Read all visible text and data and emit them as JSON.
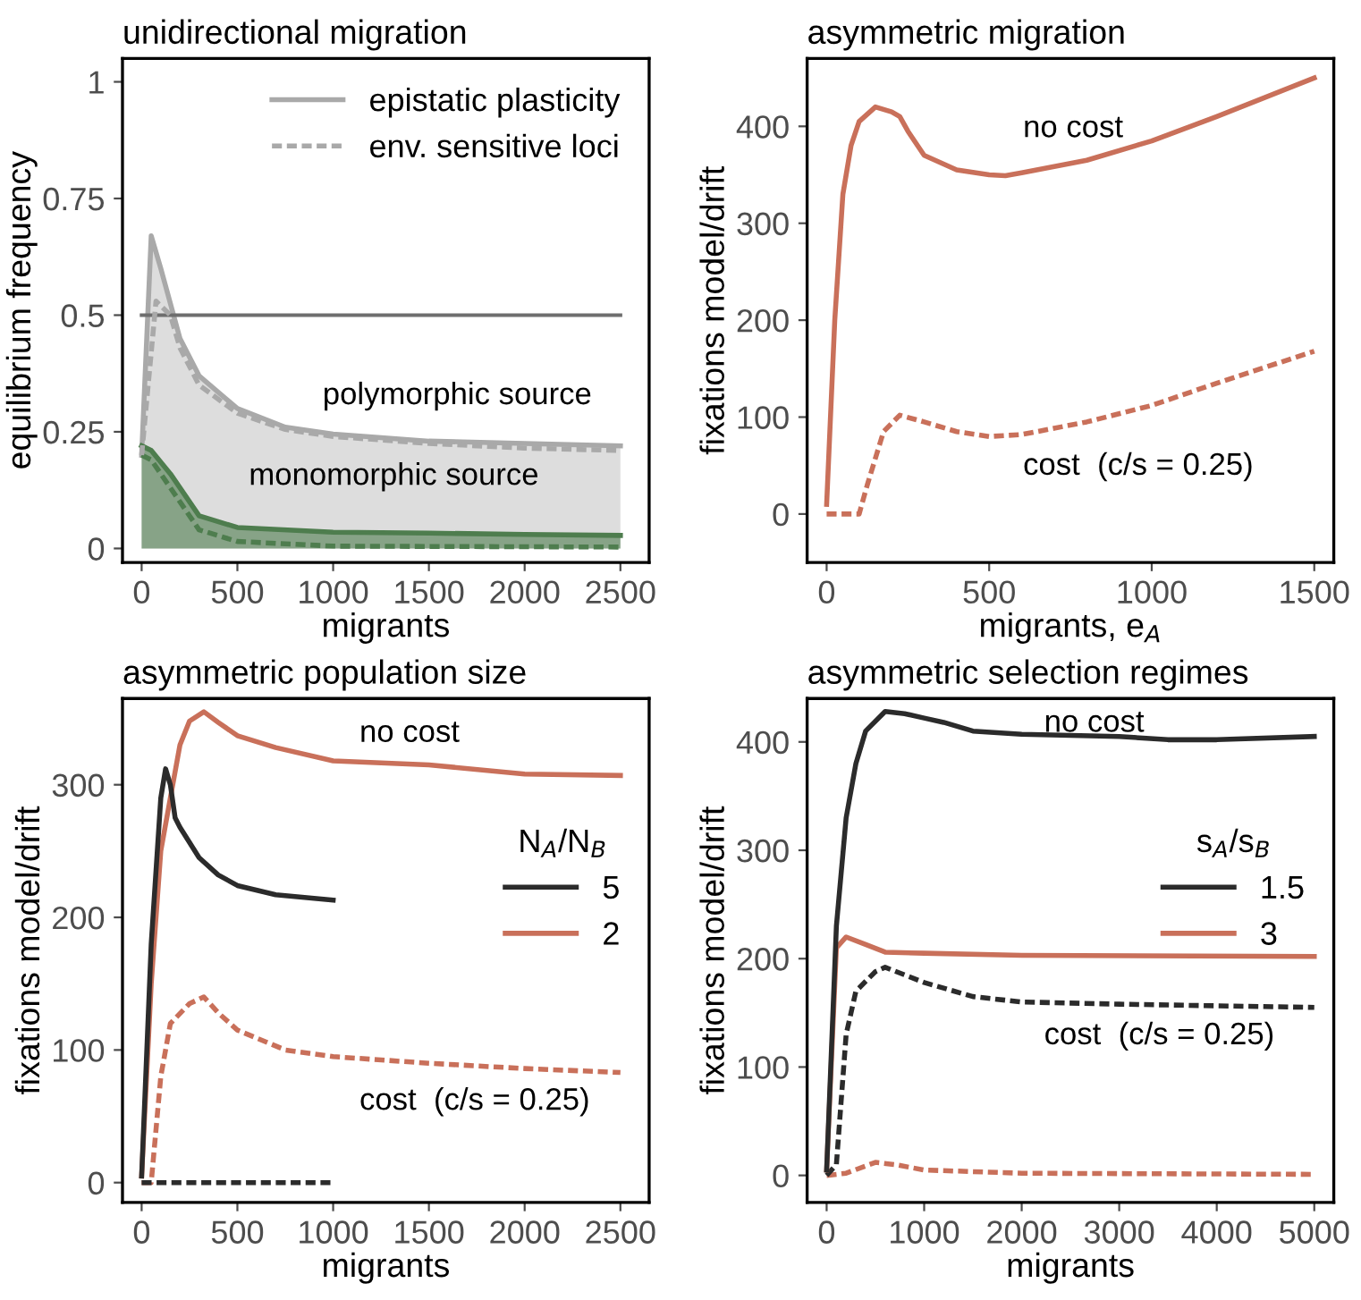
{
  "chart_data": [
    {
      "type": "area",
      "title": "unidirectional migration",
      "xlabel": "migrants",
      "ylabel": "equilibrium frequency",
      "xlim": [
        -100,
        2650
      ],
      "ylim": [
        -0.03,
        1.05
      ],
      "xticks": [
        0,
        500,
        1000,
        1500,
        2000,
        2500
      ],
      "yticks": [
        0,
        0.25,
        0.5,
        0.75,
        1
      ],
      "grid": false,
      "legend": "top right",
      "ref_lines": [
        {
          "axis": "y",
          "value": 0.5,
          "color": "#6e6e6e",
          "line_style": "solid"
        }
      ],
      "annotations": [
        "polymorphic source",
        "monomorphic source"
      ],
      "series": [
        {
          "name": "epistatic plasticity",
          "type": "area",
          "line_style": "solid",
          "color": "#a9a9a9",
          "x": [
            0,
            50,
            100,
            200,
            300,
            500,
            750,
            1000,
            1500,
            2000,
            2500
          ],
          "values": [
            0.2,
            0.67,
            0.6,
            0.45,
            0.37,
            0.3,
            0.26,
            0.245,
            0.23,
            0.225,
            0.22
          ]
        },
        {
          "name": "env. sensitive loci",
          "type": "line",
          "line_style": "dashed",
          "color": "#a9a9a9",
          "x": [
            0,
            75,
            150,
            200,
            300,
            500,
            750,
            1000,
            1500,
            2000,
            2500
          ],
          "values": [
            0.2,
            0.53,
            0.5,
            0.43,
            0.35,
            0.29,
            0.255,
            0.24,
            0.225,
            0.215,
            0.21
          ]
        },
        {
          "type": "area",
          "line_style": "solid",
          "color": "#4e7d4e",
          "x": [
            0,
            50,
            150,
            300,
            500,
            1000,
            1500,
            2000,
            2500
          ],
          "values": [
            0.22,
            0.21,
            0.16,
            0.07,
            0.045,
            0.035,
            0.033,
            0.03,
            0.028
          ]
        },
        {
          "type": "line",
          "line_style": "dashed",
          "color": "#4e7d4e",
          "x": [
            0,
            50,
            150,
            300,
            500,
            1000,
            2500
          ],
          "values": [
            0.2,
            0.19,
            0.13,
            0.04,
            0.015,
            0.005,
            0.003
          ]
        }
      ]
    },
    {
      "type": "line",
      "title": "asymmetric migration",
      "xlabel": "migrants, e$_{A}$",
      "ylabel": "fixations model/drift",
      "xlim": [
        -60,
        1560
      ],
      "ylim": [
        -50,
        470
      ],
      "xticks": [
        0,
        500,
        1000,
        1500
      ],
      "yticks": [
        0,
        100,
        200,
        300,
        400
      ],
      "grid": false,
      "annotations": [
        "no cost",
        "cost  (c/s = 0.25)"
      ],
      "series": [
        {
          "line_style": "solid",
          "color": "#c9705a",
          "x": [
            0,
            25,
            50,
            75,
            100,
            150,
            200,
            225,
            250,
            300,
            400,
            500,
            550,
            600,
            800,
            1000,
            1200,
            1500
          ],
          "values": [
            10,
            200,
            330,
            380,
            405,
            420,
            415,
            410,
            395,
            370,
            355,
            350,
            349,
            352,
            365,
            385,
            410,
            450
          ]
        },
        {
          "line_style": "dashed",
          "color": "#c9705a",
          "x": [
            0,
            100,
            125,
            175,
            225,
            300,
            400,
            500,
            600,
            800,
            1000,
            1200,
            1500
          ],
          "values": [
            0,
            0,
            30,
            85,
            102,
            95,
            85,
            80,
            82,
            95,
            112,
            135,
            168
          ]
        }
      ]
    },
    {
      "type": "line",
      "title": "asymmetric population size",
      "xlabel": "migrants",
      "ylabel": "fixations model/drift",
      "xlim": [
        -100,
        2650
      ],
      "ylim": [
        -15,
        365
      ],
      "xticks": [
        0,
        500,
        1000,
        1500,
        2000,
        2500
      ],
      "yticks": [
        0,
        100,
        200,
        300
      ],
      "grid": false,
      "legend": "right",
      "legend_title": "N$_{A}$/N$_{B}$",
      "annotations": [
        "no cost",
        "cost  (c/s = 0.25)"
      ],
      "series": [
        {
          "name": "5",
          "line_style": "solid",
          "color": "#2b2b2b",
          "x": [
            0,
            50,
            100,
            125,
            150,
            175,
            200,
            300,
            400,
            500,
            700,
            1000
          ],
          "values": [
            5,
            180,
            290,
            312,
            300,
            275,
            268,
            245,
            232,
            224,
            217,
            213
          ]
        },
        {
          "name": "2",
          "line_style": "solid",
          "color": "#c9705a",
          "x": [
            0,
            50,
            100,
            200,
            250,
            325,
            400,
            500,
            700,
            1000,
            1500,
            2000,
            2500
          ],
          "values": [
            5,
            150,
            250,
            330,
            348,
            355,
            347,
            337,
            328,
            318,
            315,
            308,
            307
          ]
        },
        {
          "line_style": "dashed",
          "color": "#2b2b2b",
          "x": [
            0,
            1000
          ],
          "values": [
            0,
            0
          ]
        },
        {
          "line_style": "dashed",
          "color": "#c9705a",
          "x": [
            0,
            50,
            100,
            150,
            250,
            325,
            400,
            500,
            750,
            1000,
            1500,
            2000,
            2500
          ],
          "values": [
            0,
            0,
            80,
            120,
            135,
            140,
            128,
            115,
            100,
            95,
            90,
            86,
            83
          ]
        }
      ]
    },
    {
      "type": "line",
      "title": "asymmetric selection regimes",
      "xlabel": "migrants",
      "ylabel": "fixations model/drift",
      "xlim": [
        -200,
        5200
      ],
      "ylim": [
        -25,
        440
      ],
      "xticks": [
        0,
        1000,
        2000,
        3000,
        4000,
        5000
      ],
      "yticks": [
        0,
        100,
        200,
        300,
        400
      ],
      "grid": false,
      "legend": "right",
      "legend_title": "s$_{A}$/s$_{B}$",
      "annotations": [
        "no cost",
        "cost  (c/s = 0.25)"
      ],
      "series": [
        {
          "name": "1.5",
          "line_style": "solid",
          "color": "#2b2b2b",
          "x": [
            0,
            100,
            200,
            300,
            400,
            600,
            800,
            1000,
            1200,
            1500,
            2000,
            3000,
            3500,
            4000,
            5000
          ],
          "values": [
            5,
            230,
            330,
            380,
            410,
            428,
            426,
            422,
            418,
            410,
            407,
            405,
            402,
            402,
            405
          ]
        },
        {
          "name": "3",
          "line_style": "solid",
          "color": "#c9705a",
          "x": [
            0,
            100,
            200,
            400,
            600,
            1000,
            2000,
            5000
          ],
          "values": [
            5,
            210,
            220,
            213,
            206,
            205,
            203,
            202
          ]
        },
        {
          "line_style": "dashed",
          "color": "#2b2b2b",
          "x": [
            0,
            100,
            200,
            300,
            500,
            600,
            800,
            1000,
            1500,
            2000,
            3000,
            5000
          ],
          "values": [
            0,
            10,
            130,
            170,
            188,
            192,
            185,
            178,
            165,
            160,
            158,
            155
          ]
        },
        {
          "line_style": "dashed",
          "color": "#c9705a",
          "x": [
            0,
            200,
            500,
            700,
            1000,
            2000,
            5000
          ],
          "values": [
            0,
            2,
            12,
            10,
            5,
            2,
            1
          ]
        }
      ]
    }
  ]
}
